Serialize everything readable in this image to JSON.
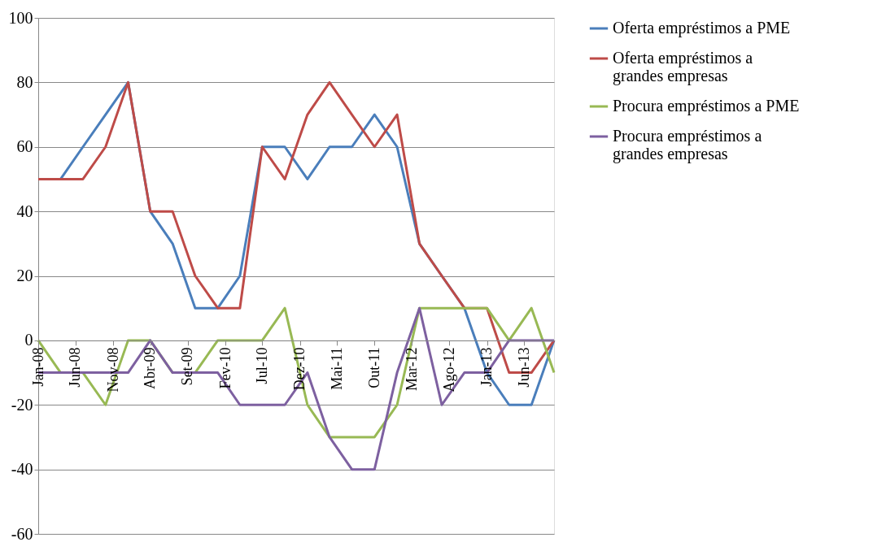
{
  "chart_data": {
    "type": "line",
    "x": [
      "2008-01",
      "2008-04",
      "2008-07",
      "2008-10",
      "2009-01",
      "2009-04",
      "2009-07",
      "2009-10",
      "2010-01",
      "2010-04",
      "2010-07",
      "2010-10",
      "2011-01",
      "2011-04",
      "2011-07",
      "2011-10",
      "2012-01",
      "2012-04",
      "2012-07",
      "2012-10",
      "2013-01",
      "2013-04",
      "2013-07",
      "2013-10"
    ],
    "series": [
      {
        "name": "Oferta empréstimos a PME",
        "color": "#4a7ebb",
        "values": [
          50,
          50,
          60,
          70,
          80,
          40,
          30,
          10,
          10,
          20,
          60,
          60,
          50,
          60,
          60,
          70,
          60,
          30,
          20,
          10,
          -10,
          -20,
          -20,
          0
        ]
      },
      {
        "name": "Oferta empréstimos a grandes empresas",
        "color": "#be4b48",
        "values": [
          50,
          50,
          50,
          60,
          80,
          40,
          40,
          20,
          10,
          10,
          60,
          50,
          70,
          80,
          70,
          60,
          70,
          30,
          20,
          10,
          10,
          -10,
          -10,
          0
        ]
      },
      {
        "name": "Procura empréstimos a PME",
        "color": "#98b954",
        "values": [
          0,
          -10,
          -10,
          -20,
          0,
          0,
          -10,
          -10,
          0,
          0,
          0,
          10,
          -20,
          -30,
          -30,
          -30,
          -20,
          10,
          10,
          10,
          10,
          0,
          10,
          -10
        ]
      },
      {
        "name": "Procura empréstimos a grandes empresas",
        "color": "#7d60a0",
        "values": [
          -10,
          -10,
          -10,
          -10,
          -10,
          0,
          -10,
          -10,
          -10,
          -20,
          -20,
          -20,
          -10,
          -30,
          -40,
          -40,
          -10,
          10,
          -20,
          -10,
          -10,
          0,
          0,
          0
        ]
      }
    ],
    "xlim": [
      "2008-01",
      "2013-10"
    ],
    "xticks": [
      {
        "value": "2008-01",
        "label": "Jan-08"
      },
      {
        "value": "2008-06",
        "label": "Jun-08"
      },
      {
        "value": "2008-11",
        "label": "Nov-08"
      },
      {
        "value": "2009-04",
        "label": "Abr-09"
      },
      {
        "value": "2009-09",
        "label": "Set-09"
      },
      {
        "value": "2010-02",
        "label": "Fev-10"
      },
      {
        "value": "2010-07",
        "label": "Jul-10"
      },
      {
        "value": "2010-12",
        "label": "Dez-10"
      },
      {
        "value": "2011-05",
        "label": "Mai-11"
      },
      {
        "value": "2011-10",
        "label": "Out-11"
      },
      {
        "value": "2012-03",
        "label": "Mar-12"
      },
      {
        "value": "2012-08",
        "label": "Ago-12"
      },
      {
        "value": "2013-01",
        "label": "Jan-13"
      },
      {
        "value": "2013-06",
        "label": "Jun-13"
      }
    ],
    "ylim": [
      -60,
      100
    ],
    "yticks": [
      -60,
      -40,
      -20,
      0,
      20,
      40,
      60,
      80,
      100
    ],
    "grid": "y",
    "legend": "right",
    "marker": "none",
    "line_style": "solid"
  }
}
